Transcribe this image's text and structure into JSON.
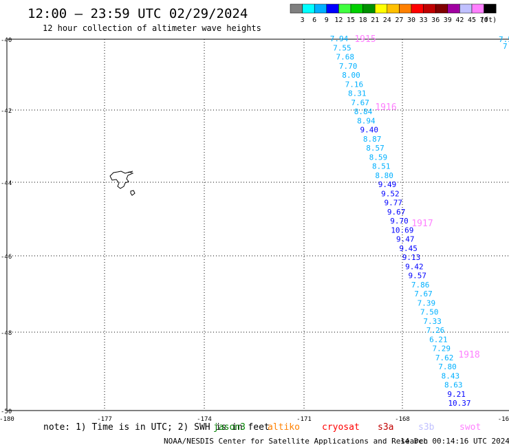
{
  "header": {
    "title": "12:00 — 23:59 UTC 02/29/2024",
    "subtitle": "12 hour collection of altimeter wave heights"
  },
  "colorbar": {
    "colors": [
      "#808080",
      "#00ffff",
      "#00b0ff",
      "#0000ff",
      "#40ff40",
      "#00d000",
      "#009000",
      "#ffff00",
      "#ffc000",
      "#ff8000",
      "#ff0000",
      "#c00000",
      "#800000",
      "#a000a0",
      "#c0c0ff",
      "#ff80ff",
      "#000000"
    ],
    "labels": [
      "3",
      "6",
      "9",
      "12",
      "15",
      "18",
      "21",
      "24",
      "27",
      "30",
      "33",
      "36",
      "39",
      "42",
      "45",
      "70"
    ],
    "unit": "(ft)"
  },
  "axes": {
    "lat_labels": [
      "-40",
      "-42",
      "-44",
      "-46",
      "-48",
      "-50"
    ],
    "lon_labels": [
      "-180",
      "-177",
      "-174",
      "-171",
      "-168",
      "-16"
    ]
  },
  "tracks": {
    "readings": [
      {
        "v": "7.94",
        "c": "#00b0ff"
      },
      {
        "v": "7.55",
        "c": "#00b0ff"
      },
      {
        "v": "7.68",
        "c": "#00b0ff"
      },
      {
        "v": "7.70",
        "c": "#00b0ff"
      },
      {
        "v": "8.00",
        "c": "#00b0ff"
      },
      {
        "v": "7.16",
        "c": "#00b0ff"
      },
      {
        "v": "8.31",
        "c": "#00b0ff"
      },
      {
        "v": "7.67",
        "c": "#00b0ff"
      },
      {
        "v": "8.84",
        "c": "#00b0ff"
      },
      {
        "v": "8.94",
        "c": "#00b0ff"
      },
      {
        "v": "9.40",
        "c": "#0000ff"
      },
      {
        "v": "8.87",
        "c": "#00b0ff"
      },
      {
        "v": "8.57",
        "c": "#00b0ff"
      },
      {
        "v": "8.59",
        "c": "#00b0ff"
      },
      {
        "v": "8.51",
        "c": "#00b0ff"
      },
      {
        "v": "8.80",
        "c": "#00b0ff"
      },
      {
        "v": "9.49",
        "c": "#0000ff"
      },
      {
        "v": "9.52",
        "c": "#0000ff"
      },
      {
        "v": "9.77",
        "c": "#0000ff"
      },
      {
        "v": "9.67",
        "c": "#0000ff"
      },
      {
        "v": "9.70",
        "c": "#0000ff"
      },
      {
        "v": "10.69",
        "c": "#0000ff"
      },
      {
        "v": "9.47",
        "c": "#0000ff"
      },
      {
        "v": "9.45",
        "c": "#0000ff"
      },
      {
        "v": "9.13",
        "c": "#0000ff"
      },
      {
        "v": "9.42",
        "c": "#0000ff"
      },
      {
        "v": "9.57",
        "c": "#0000ff"
      },
      {
        "v": "7.86",
        "c": "#00b0ff"
      },
      {
        "v": "7.67",
        "c": "#00b0ff"
      },
      {
        "v": "7.39",
        "c": "#00b0ff"
      },
      {
        "v": "7.50",
        "c": "#00b0ff"
      },
      {
        "v": "7.33",
        "c": "#00b0ff"
      },
      {
        "v": "7.26",
        "c": "#00b0ff"
      },
      {
        "v": "6.21",
        "c": "#00b0ff"
      },
      {
        "v": "7.29",
        "c": "#00b0ff"
      },
      {
        "v": "7.62",
        "c": "#00b0ff"
      },
      {
        "v": "7.80",
        "c": "#00b0ff"
      },
      {
        "v": "8.43",
        "c": "#00b0ff"
      },
      {
        "v": "8.63",
        "c": "#00b0ff"
      },
      {
        "v": "9.21",
        "c": "#0000ff"
      },
      {
        "v": "10.37",
        "c": "#0000ff"
      }
    ],
    "time_labels": [
      "1915",
      "1916",
      "1917",
      "1918"
    ],
    "time_color": "#ff80ff",
    "edge_values": [
      "7.5",
      "7"
    ]
  },
  "footer": {
    "note": "note: 1) Time is in UTC; 2) SWH is in feet",
    "satellites": [
      {
        "name": "jason3",
        "color": "#008000"
      },
      {
        "name": "altiko",
        "color": "#ff8000"
      },
      {
        "name": "cryosat",
        "color": "#ff0000"
      },
      {
        "name": "s3a",
        "color": "#c00000"
      },
      {
        "name": "s3b",
        "color": "#c0c0ff"
      },
      {
        "name": "swot",
        "color": "#ff80ff"
      }
    ],
    "credit": "NOAA/NESDIS Center for Satellite Applications and Research",
    "timestamp": "14 Dec 00:14:16 UTC 2024"
  }
}
